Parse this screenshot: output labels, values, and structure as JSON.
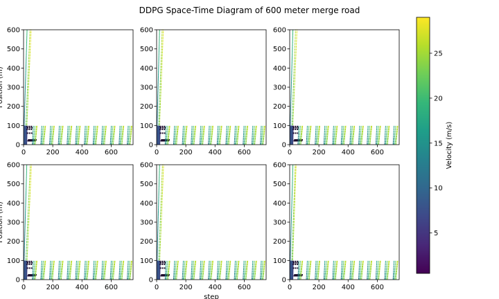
{
  "chart_data": {
    "type": "scatter",
    "title": "DDPG Space-Time Diagram of 600 meter merge road",
    "xlabel": "step",
    "ylabel": "Position (m)",
    "layout": {
      "rows": 2,
      "cols": 3
    },
    "xlim": [
      0,
      750
    ],
    "ylim": [
      0,
      600
    ],
    "xticks": [
      0,
      200,
      400,
      600
    ],
    "yticks": [
      0,
      100,
      200,
      300,
      400,
      500,
      600
    ],
    "colorbar": {
      "label": "Velocity (m/s)",
      "range": [
        0.5,
        29
      ],
      "ticks": [
        5,
        10,
        15,
        20,
        25
      ],
      "colormap": [
        "#440154",
        "#482878",
        "#3e4989",
        "#31688e",
        "#26828e",
        "#1f9e89",
        "#35b779",
        "#6ece58",
        "#b5de2b",
        "#fde725"
      ]
    },
    "panels": [
      {
        "name": "panel-1",
        "long_trajectories": [
          {
            "x0": 0,
            "x1": 24,
            "y0": 0,
            "y1": 600,
            "v0": 10,
            "v1": 20
          },
          {
            "x0": 10,
            "x1": 44,
            "y0": 0,
            "y1": 600,
            "v0": 20,
            "v1": 26
          },
          {
            "x0": 17,
            "x1": 52,
            "y0": 0,
            "y1": 600,
            "v0": 24,
            "v1": 28
          }
        ],
        "merge_starts": [
          60,
          118,
          178,
          238,
          298,
          356,
          416,
          476,
          534,
          594,
          654,
          710
        ]
      },
      {
        "name": "panel-2",
        "long_trajectories": [
          {
            "x0": 0,
            "x1": 20,
            "y0": 0,
            "y1": 600,
            "v0": 10,
            "v1": 20
          },
          {
            "x0": 9,
            "x1": 38,
            "y0": 0,
            "y1": 600,
            "v0": 20,
            "v1": 26
          },
          {
            "x0": 15,
            "x1": 46,
            "y0": 0,
            "y1": 600,
            "v0": 24,
            "v1": 28
          }
        ],
        "merge_starts": [
          58,
          116,
          176,
          236,
          296,
          354,
          414,
          474,
          532,
          592,
          652,
          710
        ]
      },
      {
        "name": "panel-3",
        "long_trajectories": [
          {
            "x0": 0,
            "x1": 22,
            "y0": 0,
            "y1": 600,
            "v0": 10,
            "v1": 20
          },
          {
            "x0": 10,
            "x1": 40,
            "y0": 0,
            "y1": 600,
            "v0": 20,
            "v1": 26
          },
          {
            "x0": 16,
            "x1": 50,
            "y0": 0,
            "y1": 600,
            "v0": 24,
            "v1": 28
          }
        ],
        "merge_starts": [
          56,
          114,
          174,
          234,
          294,
          352,
          412,
          472,
          530,
          590,
          650,
          708
        ]
      },
      {
        "name": "panel-4",
        "long_trajectories": [
          {
            "x0": 0,
            "x1": 22,
            "y0": 0,
            "y1": 600,
            "v0": 10,
            "v1": 20
          },
          {
            "x0": 10,
            "x1": 46,
            "y0": 0,
            "y1": 600,
            "v0": 20,
            "v1": 26
          },
          {
            "x0": 18,
            "x1": 54,
            "y0": 0,
            "y1": 600,
            "v0": 24,
            "v1": 28
          }
        ],
        "merge_starts": [
          60,
          118,
          178,
          238,
          298,
          356,
          416,
          476,
          534,
          594,
          654,
          710
        ]
      },
      {
        "name": "panel-5",
        "long_trajectories": [
          {
            "x0": 0,
            "x1": 20,
            "y0": 0,
            "y1": 600,
            "v0": 10,
            "v1": 20
          },
          {
            "x0": 9,
            "x1": 40,
            "y0": 0,
            "y1": 600,
            "v0": 20,
            "v1": 26
          },
          {
            "x0": 16,
            "x1": 48,
            "y0": 0,
            "y1": 600,
            "v0": 24,
            "v1": 28
          }
        ],
        "merge_starts": [
          58,
          116,
          176,
          236,
          296,
          354,
          414,
          474,
          532,
          592,
          652,
          710
        ]
      },
      {
        "name": "panel-6",
        "long_trajectories": [
          {
            "x0": 0,
            "x1": 22,
            "y0": 0,
            "y1": 600,
            "v0": 10,
            "v1": 20
          },
          {
            "x0": 10,
            "x1": 38,
            "y0": 0,
            "y1": 600,
            "v0": 20,
            "v1": 26
          },
          {
            "x0": 16,
            "x1": 44,
            "y0": 0,
            "y1": 600,
            "v0": 24,
            "v1": 28
          }
        ],
        "merge_starts": [
          56,
          114,
          174,
          234,
          294,
          352,
          412,
          472,
          530,
          590,
          650,
          708
        ]
      }
    ]
  }
}
